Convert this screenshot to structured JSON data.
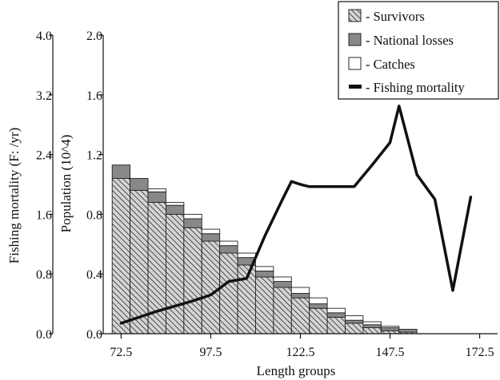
{
  "chart_data": {
    "type": "bar",
    "xlabel": "Length groups",
    "ylabel": "Population (10^4)",
    "y2label": "Fishing mortality (F: /yr)",
    "xlim": [
      67.5,
      177.5
    ],
    "ylim": [
      0,
      2.0
    ],
    "y2lim": [
      0,
      4.0
    ],
    "x_ticks": [
      "72.5",
      "97.5",
      "122.5",
      "147.5",
      "172.5"
    ],
    "x_tick_values": [
      72.5,
      97.5,
      122.5,
      147.5,
      172.5
    ],
    "y_ticks": [
      "0.0",
      "0.4",
      "0.8",
      "1.2",
      "1.6",
      "2.0"
    ],
    "y_tick_values": [
      0,
      0.4,
      0.8,
      1.2,
      1.6,
      2.0
    ],
    "y2_ticks": [
      "0.0",
      "0.8",
      "1.6",
      "2.4",
      "3.2",
      "4.0"
    ],
    "y2_tick_values": [
      0,
      0.8,
      1.6,
      2.4,
      3.2,
      4.0
    ],
    "stacked": true,
    "bar_width": 5,
    "x": [
      72.5,
      77.5,
      82.5,
      87.5,
      92.5,
      97.5,
      102.5,
      107.5,
      112.5,
      117.5,
      122.5,
      127.5,
      132.5,
      137.5,
      142.5,
      147.5,
      152.5
    ],
    "series": [
      {
        "name": "Survivors",
        "fill": "#d4d4d4",
        "hatch": true,
        "values": [
          1.04,
          0.96,
          0.88,
          0.8,
          0.71,
          0.62,
          0.54,
          0.46,
          0.38,
          0.31,
          0.24,
          0.17,
          0.11,
          0.07,
          0.04,
          0.02,
          0.01
        ]
      },
      {
        "name": "National losses",
        "fill": "#888888",
        "values": [
          0.09,
          0.08,
          0.07,
          0.06,
          0.06,
          0.05,
          0.05,
          0.05,
          0.04,
          0.04,
          0.03,
          0.03,
          0.03,
          0.02,
          0.02,
          0.02,
          0.02
        ]
      },
      {
        "name": "Catches",
        "fill": "#ffffff",
        "values": [
          0.0,
          0.0,
          0.02,
          0.02,
          0.03,
          0.03,
          0.03,
          0.03,
          0.03,
          0.03,
          0.04,
          0.04,
          0.03,
          0.03,
          0.02,
          0.01,
          0.0
        ]
      }
    ],
    "line": {
      "name": "Fishing mortality",
      "axis": "y2",
      "color": "#111111",
      "x": [
        72.5,
        82.5,
        92.5,
        97.5,
        102.5,
        107.5,
        112.5,
        117.5,
        120,
        122.5,
        125,
        132.5,
        137.5,
        142.5,
        147.5,
        150,
        155,
        160,
        165,
        170
      ],
      "values": [
        0.14,
        0.3,
        0.44,
        0.52,
        0.7,
        0.74,
        1.3,
        1.8,
        2.04,
        2.0,
        1.97,
        1.97,
        1.97,
        2.26,
        2.56,
        3.05,
        2.13,
        1.8,
        0.58,
        1.83
      ]
    },
    "legend": {
      "position": "top-right",
      "entries": [
        "- Survivors",
        "- National losses",
        "- Catches",
        "- Fishing mortality"
      ]
    }
  }
}
